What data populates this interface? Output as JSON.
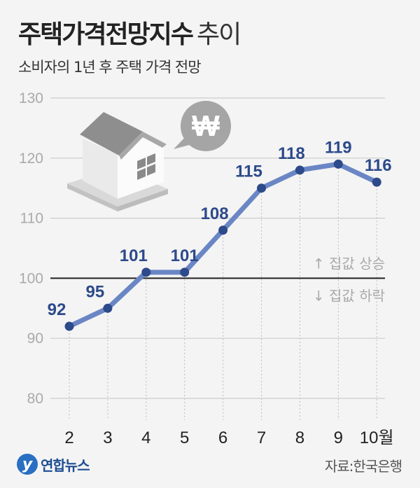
{
  "header": {
    "title_bold": "주택가격전망지수",
    "title_light": "추이",
    "subtitle": "소비자의 1년 후 주택 가격 전망"
  },
  "colors": {
    "line": "#6a86c4",
    "point": "#2d4a8a",
    "value_label": "#2d4a8a",
    "baseline": "#222222",
    "grid": "#cccccc",
    "background": "#f4f4f4"
  },
  "icons": {
    "house": "house-illustration",
    "currency": "won-speech-bubble-icon"
  },
  "annotations": {
    "up": "↑ 집값 상승",
    "down": "↓ 집값 하락"
  },
  "footer": {
    "logo_mark": "y",
    "logo_text": "연합뉴스",
    "source": "자료:한국은행"
  },
  "chart_data": {
    "type": "line",
    "title": "주택가격전망지수 추이",
    "subtitle": "소비자의 1년 후 주택 가격 전망",
    "categories": [
      "2",
      "3",
      "4",
      "5",
      "6",
      "7",
      "8",
      "9",
      "10월"
    ],
    "series": [
      {
        "name": "주택가격전망지수",
        "values": [
          92,
          95,
          101,
          101,
          108,
          115,
          118,
          119,
          116
        ]
      }
    ],
    "yticks": [
      "130",
      "120",
      "110",
      "100",
      "90",
      "80"
    ],
    "ylim": [
      80,
      130
    ],
    "baseline": 100,
    "xlabel": "",
    "ylabel": "",
    "grid": true,
    "legend": "none",
    "annotations": [
      "↑ 집값 상승",
      "↓ 집값 하락"
    ],
    "source": "자료:한국은행"
  }
}
